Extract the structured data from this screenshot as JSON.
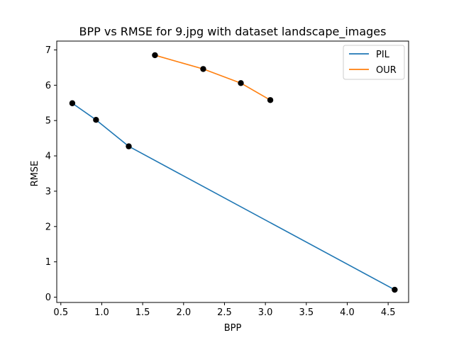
{
  "chart_data": {
    "type": "line",
    "title": "BPP vs RMSE for 9.jpg with dataset landscape_images",
    "xlabel": "BPP",
    "ylabel": "RMSE",
    "xlim": [
      0.45,
      4.75
    ],
    "ylim": [
      -0.15,
      7.25
    ],
    "xticks": [
      0.5,
      1.0,
      1.5,
      2.0,
      2.5,
      3.0,
      3.5,
      4.0,
      4.5
    ],
    "xtick_labels": [
      "0.5",
      "1.0",
      "1.5",
      "2.0",
      "2.5",
      "3.0",
      "3.5",
      "4.0",
      "4.5"
    ],
    "yticks": [
      0,
      1,
      2,
      3,
      4,
      5,
      6,
      7
    ],
    "ytick_labels": [
      "0",
      "1",
      "2",
      "3",
      "4",
      "5",
      "6",
      "7"
    ],
    "grid": false,
    "legend_position": "top-right",
    "markers": "black circles at every data point",
    "series": [
      {
        "name": "PIL",
        "color": "#1f77b4",
        "x": [
          0.64,
          0.93,
          1.33,
          4.58
        ],
        "y": [
          5.49,
          5.02,
          4.27,
          0.21
        ]
      },
      {
        "name": "OUR",
        "color": "#ff7f0e",
        "x": [
          1.65,
          2.24,
          2.7,
          3.06
        ],
        "y": [
          6.85,
          6.46,
          6.06,
          5.58
        ]
      }
    ]
  }
}
